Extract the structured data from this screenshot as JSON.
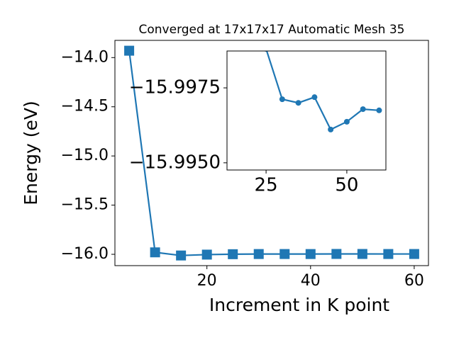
{
  "chart_data": [
    {
      "type": "line",
      "title": "Converged at 17x17x17 Automatic Mesh 35",
      "xlabel": "Increment in K point",
      "ylabel": "Energy (eV)",
      "x": [
        5,
        10,
        15,
        20,
        25,
        30,
        35,
        40,
        45,
        50,
        55,
        60
      ],
      "series": [
        {
          "color": "#1f77b4",
          "marker": "square",
          "values": [
            -13.93,
            -15.98,
            -16.012,
            -16.003,
            -15.9988,
            -15.99712,
            -15.997,
            -15.99719,
            -15.99611,
            -15.99637,
            -15.99679,
            -15.99675
          ]
        }
      ],
      "xlim": [
        2.25,
        62.75
      ],
      "xticks": [
        20,
        40,
        60
      ],
      "ylim": [
        -16.115,
        -13.825
      ],
      "yticks": [
        {
          "value": -16.0,
          "label": "−16.0"
        },
        {
          "value": -15.5,
          "label": "−15.5"
        },
        {
          "value": -15.0,
          "label": "−15.0"
        },
        {
          "value": -14.5,
          "label": "−14.5"
        },
        {
          "value": -14.0,
          "label": "−14.0"
        }
      ]
    },
    {
      "type": "line",
      "x": [
        25,
        30,
        35,
        40,
        45,
        50,
        55,
        60
      ],
      "series": [
        {
          "color": "#1f77b4",
          "marker": "circle",
          "values": [
            -15.9988,
            -15.99712,
            -15.997,
            -15.99719,
            -15.99611,
            -15.99637,
            -15.99679,
            -15.99675
          ]
        }
      ],
      "xlim": [
        12.9,
        62.1
      ],
      "xticks": [
        25,
        50
      ],
      "ylim": [
        -15.99476,
        -15.99873
      ],
      "yticks": [
        {
          "value": -15.995,
          "label": "−15.9950"
        },
        {
          "value": -15.9975,
          "label": "−15.9975"
        }
      ]
    }
  ]
}
